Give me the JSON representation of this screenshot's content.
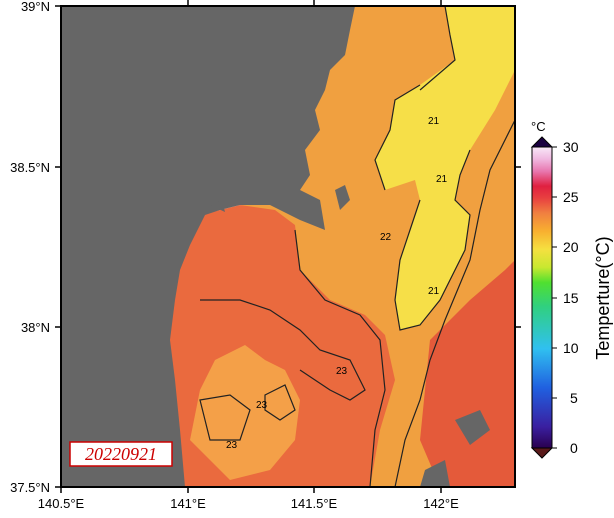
{
  "map": {
    "lat_labels": [
      "39°N",
      "38.5°N",
      "38°N",
      "37.5°N"
    ],
    "lon_labels": [
      "140.5°E",
      "141°E",
      "141.5°E",
      "142°E"
    ],
    "date_stamp": "20220921",
    "contour_labels": [
      "21",
      "21",
      "21",
      "22",
      "23",
      "23",
      "23"
    ]
  },
  "colorbar": {
    "unit": "°C",
    "title": "Temperture(°C)",
    "ticks": [
      "30",
      "25",
      "20",
      "15",
      "10",
      "5",
      "0"
    ],
    "range": [
      0,
      30
    ],
    "colors": [
      "#2a004f",
      "#3a1fa0",
      "#2060e0",
      "#30c0f0",
      "#30d080",
      "#50e030",
      "#c8e830",
      "#f5e040",
      "#f8b030",
      "#f08040",
      "#e84040",
      "#e02040",
      "#e878b0",
      "#f0b8e0",
      "#f8e8f8"
    ]
  },
  "colors": {
    "land": "#666666",
    "warm_orange": "#f0a040",
    "yellow": "#f6df48",
    "red_orange": "#ea6a3e",
    "red": "#dd3333",
    "stamp": "#cc0000"
  }
}
